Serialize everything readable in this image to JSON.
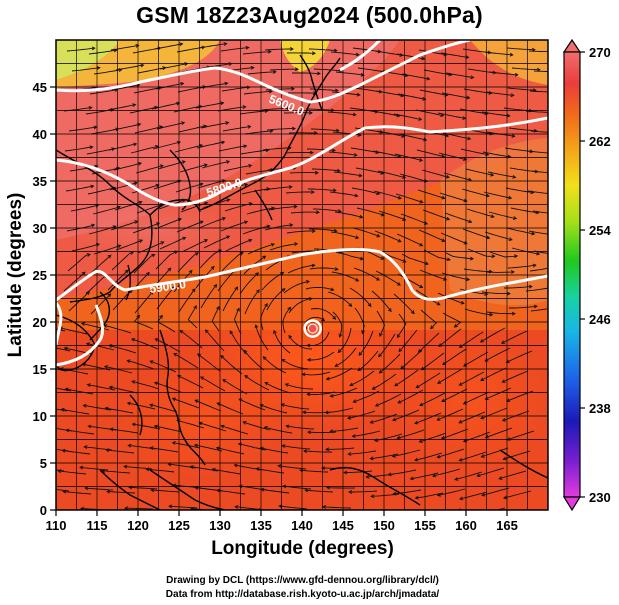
{
  "title": "GSM 18Z23Aug2024 (500.0hPa)",
  "x_axis": {
    "label": "Longitude (degrees)",
    "range": [
      110,
      170
    ],
    "ticks": [
      110,
      115,
      120,
      125,
      130,
      135,
      140,
      145,
      150,
      155,
      160,
      165
    ]
  },
  "y_axis": {
    "label": "Latitude  (degrees)",
    "range": [
      0,
      50
    ],
    "ticks": [
      0,
      5,
      10,
      15,
      20,
      25,
      30,
      35,
      40,
      45
    ]
  },
  "colorbar": {
    "range": [
      230,
      270
    ],
    "ticks": [
      230,
      238,
      246,
      254,
      262,
      270
    ],
    "colors": [
      "#e33be0",
      "#7a1fd0",
      "#1a1ab8",
      "#1f5ee8",
      "#19b4e8",
      "#19d2a0",
      "#1fc81f",
      "#a6e01a",
      "#f0e01a",
      "#f5a51a",
      "#f06a1a",
      "#eb3c3c",
      "#f06e6e"
    ]
  },
  "contour_labels": [
    "5900.0",
    "5800.0",
    "5600.0"
  ],
  "cyclone": {
    "lon": 141.3,
    "lat": 19.3
  },
  "credits": [
    "Drawing by DCL (https://www.gfd-dennou.org/library/dcl/)",
    "Data from http://database.rish.kyoto-u.ac.jp/arch/jmadata/"
  ]
}
